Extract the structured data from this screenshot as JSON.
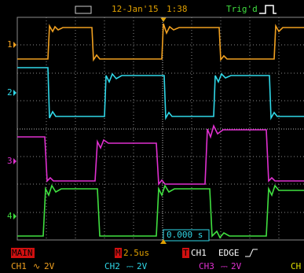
{
  "status": {
    "date": "12-Jan'15",
    "time": "1:38",
    "trigger_state": "Trig'd"
  },
  "channel_markers": [
    "1",
    "2",
    "3",
    "4"
  ],
  "time_offset": "0.000 s",
  "bottom": {
    "mode": "MAIN",
    "timebase_key": "M",
    "timebase": "2.5us",
    "trigger_key": "T",
    "trigger_source": "CH1",
    "trigger_type": "EDGE",
    "channels": [
      {
        "name": "CH1",
        "coupling": "∿",
        "scale": "2V"
      },
      {
        "name": "CH2",
        "coupling": "⎓",
        "scale": "2V"
      },
      {
        "name": "CH3",
        "coupling": "⎓",
        "scale": "2V"
      },
      {
        "name": "CH"
      }
    ]
  }
}
